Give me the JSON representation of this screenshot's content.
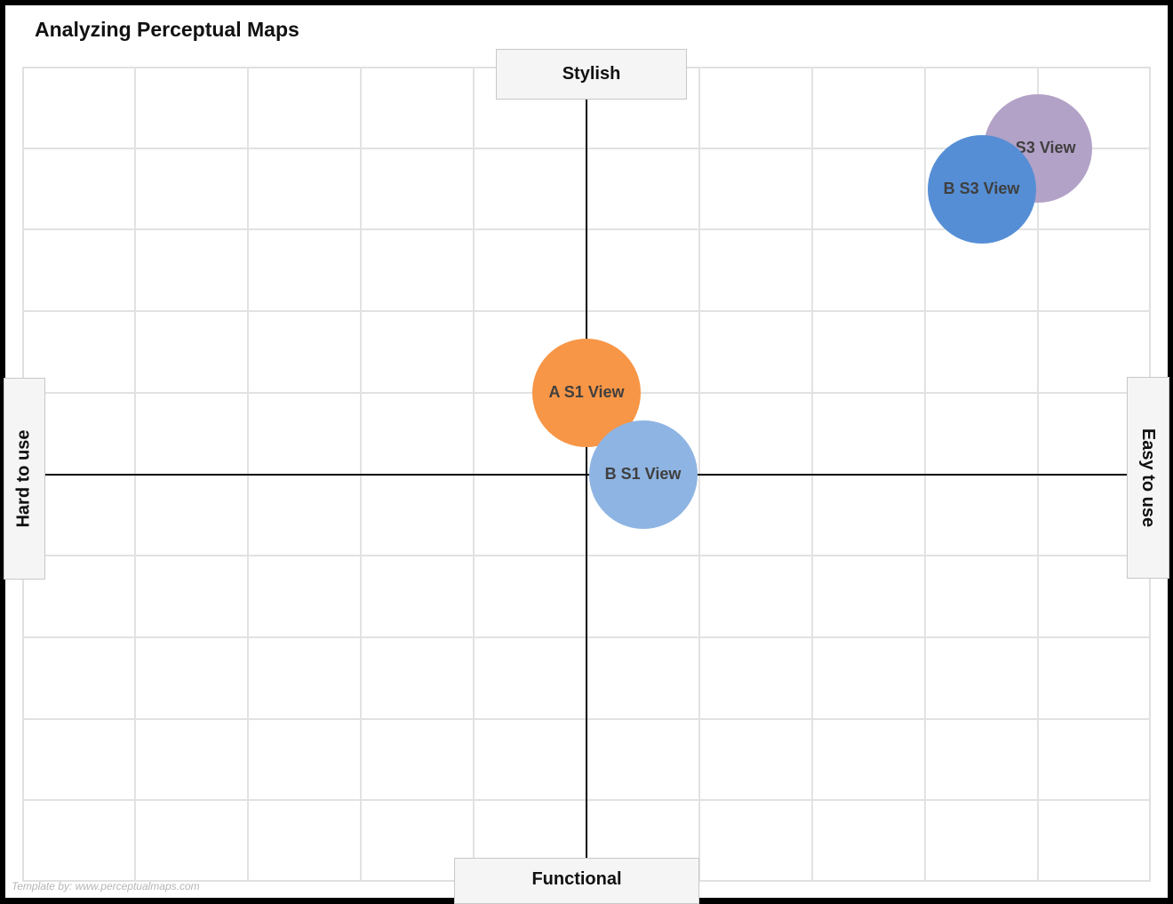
{
  "title": "Analyzing Perceptual Maps",
  "axes": {
    "top": "Stylish",
    "bottom": "Functional",
    "left": "Hard to use",
    "right": "Easy to use"
  },
  "watermark": "Template by: www.perceptualmaps.com",
  "colors": {
    "A S1 View": "#F79646",
    "B S1 View": "#8EB4E3",
    "A S3 View": "#B3A2C7",
    "B S3 View": "#558ED5",
    "grid": "#E2E2E2",
    "axis": "#000000"
  },
  "chart_data": {
    "type": "scatter",
    "subtype": "bubble / perceptual map",
    "title": "Analyzing Perceptual Maps",
    "xlabel": "Hard to use (left) ↔ Easy to use (right)",
    "ylabel": "Functional (bottom) ↔ Stylish (top)",
    "xlim": [
      -5,
      5
    ],
    "ylim": [
      -5,
      5
    ],
    "grid": true,
    "grid_cells": [
      10,
      10
    ],
    "legend": null,
    "series": [
      {
        "name": "A S1 View",
        "x": 0.0,
        "y": 1.0,
        "size": 1,
        "color": "#F79646"
      },
      {
        "name": "B S1 View",
        "x": 0.5,
        "y": 0.0,
        "size": 1,
        "color": "#8EB4E3"
      },
      {
        "name": "A S3 View",
        "x": 4.0,
        "y": 4.0,
        "size": 1,
        "color": "#B3A2C7"
      },
      {
        "name": "B S3 View",
        "x": 3.5,
        "y": 3.5,
        "size": 1,
        "color": "#558ED5"
      }
    ],
    "annotations": [
      "Stylish",
      "Functional",
      "Hard to use",
      "Easy to use",
      "Template by: www.perceptualmaps.com"
    ]
  }
}
